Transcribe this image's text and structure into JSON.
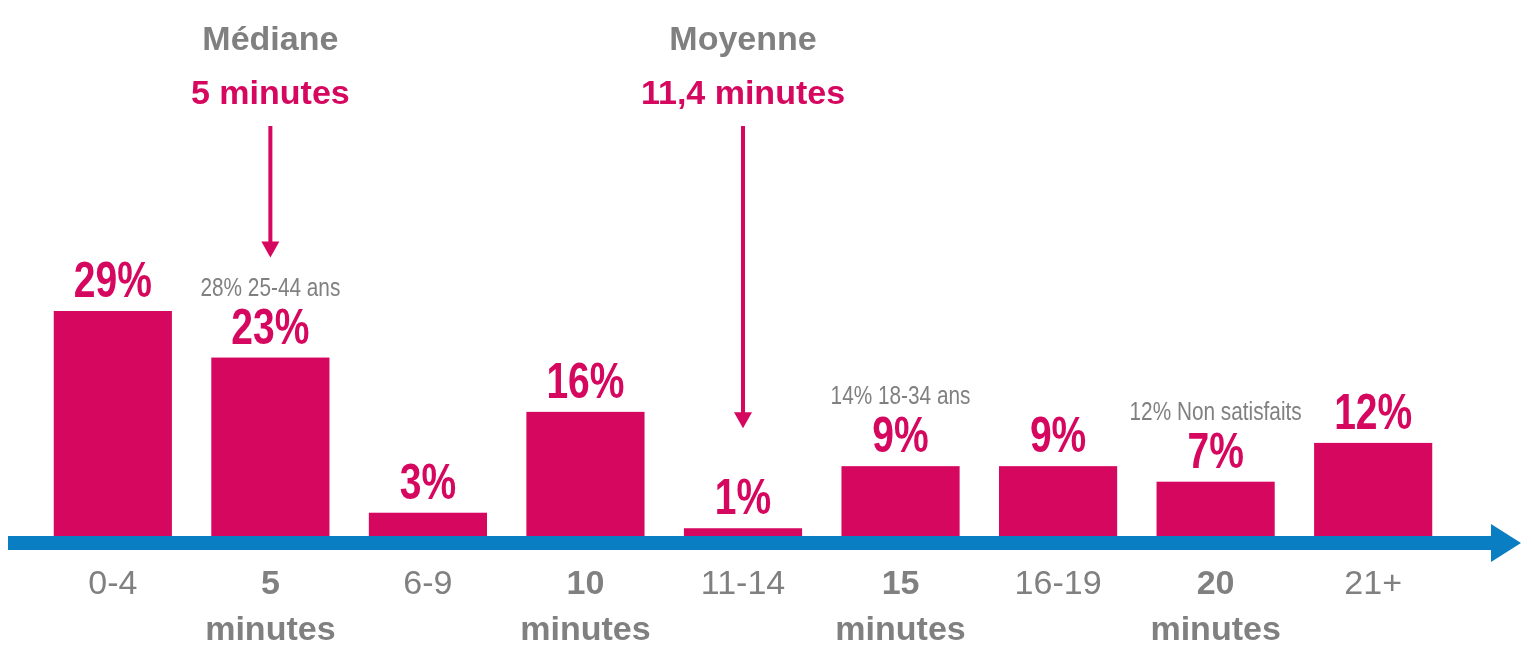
{
  "chart_data": {
    "type": "bar",
    "categories": [
      "0-4",
      "5 minutes",
      "6-9",
      "10 minutes",
      "11-14",
      "15 minutes",
      "16-19",
      "20 minutes",
      "21+"
    ],
    "values": [
      29,
      23,
      3,
      16,
      1,
      9,
      9,
      7,
      12
    ],
    "value_labels": [
      "29%",
      "23%",
      "3%",
      "16%",
      "1%",
      "9%",
      "9%",
      "7%",
      "12%"
    ],
    "color": "#d6075e",
    "annotations": [
      "Médiane\n5 minutes",
      "Moyenne\n11,4 minutes",
      "28% 25-44 ans",
      "14% 18-34 ans",
      "12% Non satisfaits"
    ]
  }
}
